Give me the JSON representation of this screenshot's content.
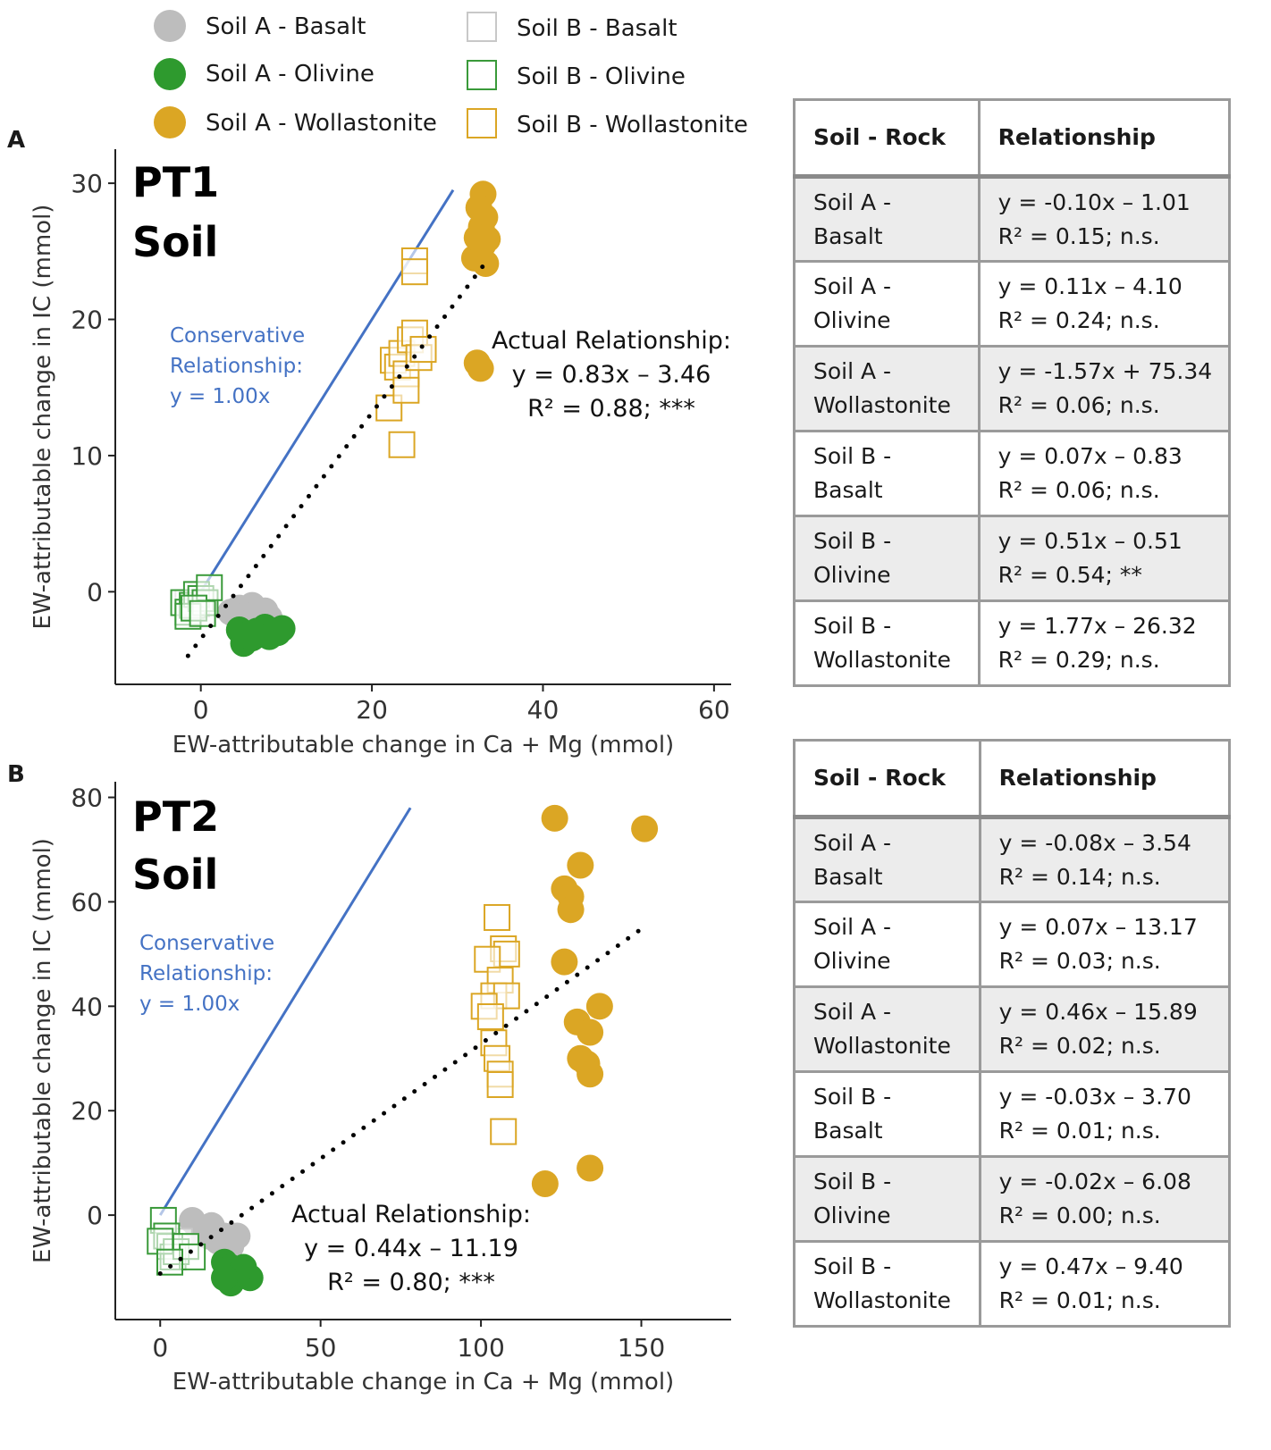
{
  "legend": [
    {
      "label": "Soil A - Basalt",
      "shape": "circle",
      "color": "#bdbdbd"
    },
    {
      "label": "Soil A - Olivine",
      "shape": "circle",
      "color": "#2e9a2e"
    },
    {
      "label": "Soil A - Wollastonite",
      "shape": "circle",
      "color": "#dba624"
    },
    {
      "label": "Soil B - Basalt",
      "shape": "square",
      "color": "#c8c8c8"
    },
    {
      "label": "Soil B - Olivine",
      "shape": "square",
      "color": "#3a9a3a"
    },
    {
      "label": "Soil B - Wollastonite",
      "shape": "square",
      "color": "#dba624"
    }
  ],
  "colors": {
    "conservative": "#4472c4",
    "fit": "#000000",
    "axis": "#222222"
  },
  "panels": [
    {
      "letter": "A",
      "title_line1": "PT1",
      "title_line2": "Soil",
      "conservative": {
        "line1": "Conservative",
        "line2": "Relationship:",
        "line3": "y = 1.00x"
      },
      "actual": {
        "line1": "Actual Relationship:",
        "line2": "y = 0.83x – 3.46",
        "line3": "R² = 0.88; ***"
      },
      "table": {
        "header": [
          "Soil - Rock",
          "Relationship"
        ],
        "rows": [
          {
            "soil": "Soil A -",
            "rock": "Basalt",
            "eq": "y = -0.10x – 1.01",
            "r2": "R² = 0.15; n.s."
          },
          {
            "soil": "Soil A -",
            "rock": "Olivine",
            "eq": "y = 0.11x – 4.10",
            "r2": "R² = 0.24; n.s."
          },
          {
            "soil": "Soil A -",
            "rock": "Wollastonite",
            "eq": "y = -1.57x + 75.34",
            "r2": "R² = 0.06; n.s."
          },
          {
            "soil": "Soil B -",
            "rock": "Basalt",
            "eq": "y = 0.07x – 0.83",
            "r2": "R² = 0.06; n.s."
          },
          {
            "soil": "Soil B -",
            "rock": "Olivine",
            "eq": "y = 0.51x – 0.51",
            "r2": "R² = 0.54; **"
          },
          {
            "soil": "Soil B -",
            "rock": "Wollastonite",
            "eq": "y = 1.77x – 26.32",
            "r2": "R² = 0.29; n.s."
          }
        ]
      }
    },
    {
      "letter": "B",
      "title_line1": "PT2",
      "title_line2": "Soil",
      "conservative": {
        "line1": "Conservative",
        "line2": "Relationship:",
        "line3": "y = 1.00x"
      },
      "actual": {
        "line1": "Actual Relationship:",
        "line2": "y = 0.44x – 11.19",
        "line3": "R² = 0.80; ***"
      },
      "table": {
        "header": [
          "Soil - Rock",
          "Relationship"
        ],
        "rows": [
          {
            "soil": "Soil A -",
            "rock": "Basalt",
            "eq": "y = -0.08x – 3.54",
            "r2": "R² = 0.14; n.s."
          },
          {
            "soil": "Soil A -",
            "rock": "Olivine",
            "eq": "y = 0.07x – 13.17",
            "r2": "R² = 0.03; n.s."
          },
          {
            "soil": "Soil A -",
            "rock": "Wollastonite",
            "eq": "y = 0.46x – 15.89",
            "r2": "R² = 0.02; n.s."
          },
          {
            "soil": "Soil B -",
            "rock": "Basalt",
            "eq": "y = -0.03x – 3.70",
            "r2": "R² = 0.01; n.s."
          },
          {
            "soil": "Soil B -",
            "rock": "Olivine",
            "eq": "y = -0.02x – 6.08",
            "r2": "R² = 0.00; n.s."
          },
          {
            "soil": "Soil B -",
            "rock": "Wollastonite",
            "eq": "y = 0.47x – 9.40",
            "r2": "R² = 0.01; n.s."
          }
        ]
      }
    }
  ],
  "chart_data": [
    {
      "type": "scatter",
      "title": "PT1 Soil",
      "xlabel": "EW-attributable change in Ca + Mg (mmol)",
      "ylabel": "EW-attributable change in IC (mmol)",
      "xlim": [
        -10,
        62
      ],
      "ylim": [
        -6.8,
        32.5
      ],
      "xticks": [
        0,
        20,
        40,
        60
      ],
      "yticks": [
        0,
        10,
        20,
        30
      ],
      "grid": false,
      "conservative_line": {
        "slope": 1.0,
        "intercept": 0,
        "x": [
          0,
          29.5
        ]
      },
      "fit_line": {
        "slope": 0.83,
        "intercept": -3.46,
        "x": [
          -1.5,
          33.5
        ]
      },
      "series": [
        {
          "name": "Soil A - Basalt",
          "shape": "circle",
          "points": [
            [
              3.5,
              -1.5
            ],
            [
              4.5,
              -1.2
            ],
            [
              5,
              -1.8
            ],
            [
              6,
              -1.0
            ],
            [
              6.5,
              -1.6
            ],
            [
              7,
              -2.2
            ],
            [
              7.5,
              -1.4
            ],
            [
              8,
              -1.9
            ]
          ]
        },
        {
          "name": "Soil A - Olivine",
          "shape": "circle",
          "points": [
            [
              4.5,
              -2.8
            ],
            [
              5,
              -3.8
            ],
            [
              5.2,
              -3.2
            ],
            [
              6,
              -3.4
            ],
            [
              6.5,
              -2.9
            ],
            [
              7,
              -3.1
            ],
            [
              7.5,
              -2.6
            ],
            [
              8,
              -3.3
            ],
            [
              9,
              -3.0
            ],
            [
              9.5,
              -2.7
            ]
          ]
        },
        {
          "name": "Soil A - Wollastonite",
          "shape": "circle",
          "points": [
            [
              32,
              24.5
            ],
            [
              32.5,
              24.7
            ],
            [
              33,
              29.2
            ],
            [
              33.3,
              24.1
            ],
            [
              32.5,
              28.2
            ],
            [
              32.8,
              26.8
            ],
            [
              33,
              25.5
            ],
            [
              33.5,
              25.9
            ],
            [
              33.2,
              27.5
            ],
            [
              32.3,
              26.0
            ],
            [
              32.3,
              16.8
            ],
            [
              32.7,
              16.4
            ]
          ]
        },
        {
          "name": "Soil B - Basalt",
          "shape": "square",
          "points": [
            [
              -1.5,
              -0.8
            ],
            [
              -1,
              -1.0
            ],
            [
              -0.5,
              -0.9
            ]
          ]
        },
        {
          "name": "Soil B - Olivine",
          "shape": "square",
          "points": [
            [
              -2,
              -0.8
            ],
            [
              -1.5,
              -1.5
            ],
            [
              -1,
              -1.0
            ],
            [
              -0.5,
              -0.2
            ],
            [
              0,
              -0.5
            ],
            [
              0.5,
              -0.8
            ],
            [
              1,
              0.3
            ],
            [
              -1.5,
              -1.8
            ],
            [
              -0.8,
              -1.2
            ],
            [
              0.2,
              -1.6
            ]
          ]
        },
        {
          "name": "Soil B - Wollastonite",
          "shape": "square",
          "points": [
            [
              25,
              24.3
            ],
            [
              25,
              23.5
            ],
            [
              22.5,
              17
            ],
            [
              23,
              16.5
            ],
            [
              23.5,
              17.5
            ],
            [
              24,
              16
            ],
            [
              24.5,
              18.5
            ],
            [
              25,
              19
            ],
            [
              25.5,
              17.2
            ],
            [
              26,
              17.8
            ],
            [
              22,
              13.5
            ],
            [
              24,
              14.8
            ],
            [
              23.5,
              10.8
            ]
          ]
        }
      ]
    },
    {
      "type": "scatter",
      "title": "PT2 Soil",
      "xlabel": "EW-attributable change in Ca + Mg (mmol)",
      "ylabel": "EW-attributable change in IC (mmol)",
      "xlim": [
        -14,
        178
      ],
      "ylim": [
        -20,
        83
      ],
      "xticks": [
        0,
        50,
        100,
        150
      ],
      "yticks": [
        0,
        20,
        40,
        60,
        80
      ],
      "grid": false,
      "conservative_line": {
        "slope": 1.0,
        "intercept": 0,
        "x": [
          0,
          78
        ]
      },
      "fit_line": {
        "slope": 0.44,
        "intercept": -11.19,
        "x": [
          0,
          151
        ]
      },
      "series": [
        {
          "name": "Soil A - Basalt",
          "shape": "circle",
          "points": [
            [
              10,
              -1
            ],
            [
              12,
              -3
            ],
            [
              15,
              -4
            ],
            [
              18,
              -5
            ],
            [
              20,
              -4
            ],
            [
              22,
              -6
            ],
            [
              24,
              -4
            ],
            [
              16,
              -2
            ]
          ]
        },
        {
          "name": "Soil A - Olivine",
          "shape": "circle",
          "points": [
            [
              20,
              -9
            ],
            [
              21,
              -12
            ],
            [
              22,
              -13
            ],
            [
              22,
              -10
            ],
            [
              25,
              -11
            ],
            [
              28,
              -12
            ],
            [
              26,
              -10
            ],
            [
              20,
              -12
            ]
          ]
        },
        {
          "name": "Soil A - Wollastonite",
          "shape": "circle",
          "points": [
            [
              123,
              76
            ],
            [
              151,
              74
            ],
            [
              131,
              67
            ],
            [
              126,
              62.5
            ],
            [
              128,
              61
            ],
            [
              128,
              58.5
            ],
            [
              126,
              48.5
            ],
            [
              137,
              40
            ],
            [
              130,
              37
            ],
            [
              134,
              35
            ],
            [
              131,
              30
            ],
            [
              133,
              29
            ],
            [
              134,
              27
            ],
            [
              134,
              9
            ],
            [
              120,
              6
            ]
          ]
        },
        {
          "name": "Soil B - Basalt",
          "shape": "square",
          "points": [
            [
              2,
              -4
            ],
            [
              6,
              -5
            ],
            [
              8,
              -6
            ]
          ]
        },
        {
          "name": "Soil B - Olivine",
          "shape": "square",
          "points": [
            [
              1,
              -1
            ],
            [
              2,
              -4
            ],
            [
              3,
              -6
            ],
            [
              4,
              -8
            ],
            [
              5,
              -7
            ],
            [
              8,
              -6
            ],
            [
              10,
              -8
            ],
            [
              0,
              -5
            ],
            [
              3,
              -9
            ]
          ]
        },
        {
          "name": "Soil B - Wollastonite",
          "shape": "square",
          "points": [
            [
              105,
              57
            ],
            [
              107,
              51
            ],
            [
              108,
              50
            ],
            [
              102,
              49
            ],
            [
              106,
              45
            ],
            [
              104,
              42
            ],
            [
              108,
              42
            ],
            [
              101,
              40
            ],
            [
              103,
              38
            ],
            [
              104,
              33
            ],
            [
              105,
              30
            ],
            [
              106,
              27
            ],
            [
              106,
              25
            ],
            [
              107,
              16
            ]
          ]
        }
      ]
    }
  ]
}
